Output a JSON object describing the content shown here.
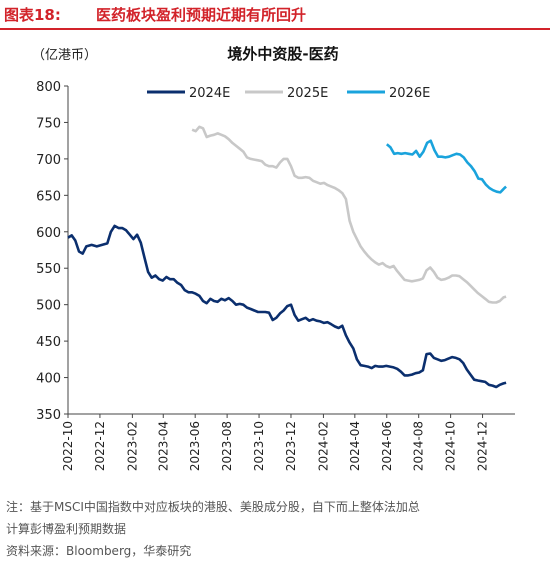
{
  "figure": {
    "label": "图表18:",
    "title": "医药板块盈利预期近期有所回升"
  },
  "notes": {
    "note1": "注：基于MSCI中国指数中对应板块的港股、美股成分股，自下而上整体法加总",
    "note2": "计算彭博盈利预期数据",
    "source": "资料来源：Bloomberg，华泰研究"
  },
  "chart_data": {
    "type": "line",
    "title": "境外中资股-医药",
    "unit_label": "（亿港币）",
    "ylim": [
      350,
      800
    ],
    "y_ticks": [
      350,
      400,
      450,
      500,
      550,
      600,
      650,
      700,
      750,
      800
    ],
    "x_range": [
      "2022-10-01",
      "2025-02-01"
    ],
    "x_ticks": [
      "2022-10",
      "2022-12",
      "2023-02",
      "2023-04",
      "2023-06",
      "2023-08",
      "2023-10",
      "2023-12",
      "2024-02",
      "2024-04",
      "2024-06",
      "2024-08",
      "2024-10",
      "2024-12"
    ],
    "grid": false,
    "legend_position": "top",
    "series": [
      {
        "name": "2024E",
        "color": "#0b2f6e",
        "points": [
          [
            "2022-10-01",
            592
          ],
          [
            "2022-10-08",
            595
          ],
          [
            "2022-10-15",
            588
          ],
          [
            "2022-10-22",
            573
          ],
          [
            "2022-10-29",
            570
          ],
          [
            "2022-11-05",
            580
          ],
          [
            "2022-11-15",
            582
          ],
          [
            "2022-11-25",
            580
          ],
          [
            "2022-12-05",
            582
          ],
          [
            "2022-12-15",
            584
          ],
          [
            "2022-12-22",
            600
          ],
          [
            "2022-12-29",
            608
          ],
          [
            "2023-01-06",
            605
          ],
          [
            "2023-01-13",
            605
          ],
          [
            "2023-01-20",
            602
          ],
          [
            "2023-01-27",
            596
          ],
          [
            "2023-02-03",
            590
          ],
          [
            "2023-02-10",
            596
          ],
          [
            "2023-02-17",
            585
          ],
          [
            "2023-02-24",
            565
          ],
          [
            "2023-03-03",
            545
          ],
          [
            "2023-03-10",
            537
          ],
          [
            "2023-03-17",
            540
          ],
          [
            "2023-03-24",
            535
          ],
          [
            "2023-03-31",
            533
          ],
          [
            "2023-04-07",
            538
          ],
          [
            "2023-04-14",
            535
          ],
          [
            "2023-04-21",
            535
          ],
          [
            "2023-04-28",
            530
          ],
          [
            "2023-05-05",
            527
          ],
          [
            "2023-05-12",
            520
          ],
          [
            "2023-05-19",
            517
          ],
          [
            "2023-05-26",
            517
          ],
          [
            "2023-06-02",
            515
          ],
          [
            "2023-06-09",
            512
          ],
          [
            "2023-06-16",
            505
          ],
          [
            "2023-06-23",
            502
          ],
          [
            "2023-06-30",
            508
          ],
          [
            "2023-07-07",
            505
          ],
          [
            "2023-07-14",
            504
          ],
          [
            "2023-07-21",
            508
          ],
          [
            "2023-07-28",
            506
          ],
          [
            "2023-08-04",
            509
          ],
          [
            "2023-08-11",
            505
          ],
          [
            "2023-08-18",
            500
          ],
          [
            "2023-08-25",
            501
          ],
          [
            "2023-09-01",
            500
          ],
          [
            "2023-09-08",
            496
          ],
          [
            "2023-09-15",
            494
          ],
          [
            "2023-09-22",
            492
          ],
          [
            "2023-09-29",
            490
          ],
          [
            "2023-10-06",
            490
          ],
          [
            "2023-10-13",
            490
          ],
          [
            "2023-10-20",
            489
          ],
          [
            "2023-10-27",
            479
          ],
          [
            "2023-11-03",
            482
          ],
          [
            "2023-11-10",
            488
          ],
          [
            "2023-11-17",
            492
          ],
          [
            "2023-11-24",
            498
          ],
          [
            "2023-12-01",
            500
          ],
          [
            "2023-12-08",
            486
          ],
          [
            "2023-12-15",
            478
          ],
          [
            "2023-12-22",
            480
          ],
          [
            "2023-12-29",
            482
          ],
          [
            "2024-01-05",
            478
          ],
          [
            "2024-01-12",
            480
          ],
          [
            "2024-01-19",
            478
          ],
          [
            "2024-01-26",
            477
          ],
          [
            "2024-02-02",
            475
          ],
          [
            "2024-02-09",
            476
          ],
          [
            "2024-02-16",
            473
          ],
          [
            "2024-02-23",
            470
          ],
          [
            "2024-03-01",
            468
          ],
          [
            "2024-03-08",
            471
          ],
          [
            "2024-03-15",
            458
          ],
          [
            "2024-03-22",
            448
          ],
          [
            "2024-03-29",
            440
          ],
          [
            "2024-04-05",
            425
          ],
          [
            "2024-04-12",
            417
          ],
          [
            "2024-04-19",
            416
          ],
          [
            "2024-04-26",
            415
          ],
          [
            "2024-05-03",
            413
          ],
          [
            "2024-05-10",
            416
          ],
          [
            "2024-05-17",
            415
          ],
          [
            "2024-05-24",
            415
          ],
          [
            "2024-05-31",
            416
          ],
          [
            "2024-06-07",
            415
          ],
          [
            "2024-06-14",
            414
          ],
          [
            "2024-06-21",
            412
          ],
          [
            "2024-06-28",
            408
          ],
          [
            "2024-07-05",
            403
          ],
          [
            "2024-07-12",
            403
          ],
          [
            "2024-07-19",
            404
          ],
          [
            "2024-07-26",
            406
          ],
          [
            "2024-08-02",
            407
          ],
          [
            "2024-08-09",
            410
          ],
          [
            "2024-08-16",
            432
          ],
          [
            "2024-08-23",
            433
          ],
          [
            "2024-08-30",
            427
          ],
          [
            "2024-09-06",
            425
          ],
          [
            "2024-09-13",
            423
          ],
          [
            "2024-09-20",
            424
          ],
          [
            "2024-09-27",
            426
          ],
          [
            "2024-10-04",
            428
          ],
          [
            "2024-10-11",
            427
          ],
          [
            "2024-10-18",
            425
          ],
          [
            "2024-10-25",
            420
          ],
          [
            "2024-11-01",
            411
          ],
          [
            "2024-11-08",
            404
          ],
          [
            "2024-11-15",
            397
          ],
          [
            "2024-11-22",
            396
          ],
          [
            "2024-11-29",
            395
          ],
          [
            "2024-12-06",
            394
          ],
          [
            "2024-12-13",
            390
          ],
          [
            "2024-12-20",
            389
          ],
          [
            "2024-12-27",
            387
          ],
          [
            "2025-01-03",
            390
          ],
          [
            "2025-01-10",
            392
          ],
          [
            "2025-01-15",
            393
          ]
        ]
      },
      {
        "name": "2025E",
        "color": "#c8c8c8",
        "points": [
          [
            "2023-05-26",
            740
          ],
          [
            "2023-06-02",
            738
          ],
          [
            "2023-06-09",
            744
          ],
          [
            "2023-06-16",
            742
          ],
          [
            "2023-06-23",
            730
          ],
          [
            "2023-06-30",
            732
          ],
          [
            "2023-07-07",
            733
          ],
          [
            "2023-07-14",
            735
          ],
          [
            "2023-07-21",
            733
          ],
          [
            "2023-07-28",
            731
          ],
          [
            "2023-08-04",
            727
          ],
          [
            "2023-08-11",
            722
          ],
          [
            "2023-08-18",
            718
          ],
          [
            "2023-08-25",
            714
          ],
          [
            "2023-09-01",
            710
          ],
          [
            "2023-09-08",
            702
          ],
          [
            "2023-09-15",
            700
          ],
          [
            "2023-09-22",
            699
          ],
          [
            "2023-09-29",
            698
          ],
          [
            "2023-10-06",
            697
          ],
          [
            "2023-10-13",
            692
          ],
          [
            "2023-10-20",
            690
          ],
          [
            "2023-10-27",
            690
          ],
          [
            "2023-11-03",
            688
          ],
          [
            "2023-11-10",
            695
          ],
          [
            "2023-11-17",
            700
          ],
          [
            "2023-11-24",
            700
          ],
          [
            "2023-12-01",
            690
          ],
          [
            "2023-12-08",
            677
          ],
          [
            "2023-12-15",
            674
          ],
          [
            "2023-12-22",
            674
          ],
          [
            "2023-12-29",
            675
          ],
          [
            "2024-01-05",
            674
          ],
          [
            "2024-01-12",
            670
          ],
          [
            "2024-01-19",
            668
          ],
          [
            "2024-01-26",
            666
          ],
          [
            "2024-02-02",
            667
          ],
          [
            "2024-02-09",
            664
          ],
          [
            "2024-02-16",
            662
          ],
          [
            "2024-02-23",
            660
          ],
          [
            "2024-03-01",
            657
          ],
          [
            "2024-03-08",
            653
          ],
          [
            "2024-03-15",
            645
          ],
          [
            "2024-03-22",
            615
          ],
          [
            "2024-03-29",
            600
          ],
          [
            "2024-04-05",
            590
          ],
          [
            "2024-04-12",
            580
          ],
          [
            "2024-04-19",
            573
          ],
          [
            "2024-04-26",
            567
          ],
          [
            "2024-05-03",
            562
          ],
          [
            "2024-05-10",
            558
          ],
          [
            "2024-05-17",
            555
          ],
          [
            "2024-05-24",
            557
          ],
          [
            "2024-05-31",
            553
          ],
          [
            "2024-06-07",
            551
          ],
          [
            "2024-06-14",
            553
          ],
          [
            "2024-06-21",
            546
          ],
          [
            "2024-06-28",
            540
          ],
          [
            "2024-07-05",
            534
          ],
          [
            "2024-07-12",
            533
          ],
          [
            "2024-07-19",
            532
          ],
          [
            "2024-07-26",
            533
          ],
          [
            "2024-08-02",
            534
          ],
          [
            "2024-08-09",
            536
          ],
          [
            "2024-08-16",
            547
          ],
          [
            "2024-08-23",
            551
          ],
          [
            "2024-08-30",
            545
          ],
          [
            "2024-09-06",
            537
          ],
          [
            "2024-09-13",
            534
          ],
          [
            "2024-09-20",
            535
          ],
          [
            "2024-09-27",
            537
          ],
          [
            "2024-10-04",
            540
          ],
          [
            "2024-10-11",
            540
          ],
          [
            "2024-10-18",
            539
          ],
          [
            "2024-10-25",
            535
          ],
          [
            "2024-11-01",
            531
          ],
          [
            "2024-11-08",
            526
          ],
          [
            "2024-11-15",
            521
          ],
          [
            "2024-11-22",
            516
          ],
          [
            "2024-11-29",
            512
          ],
          [
            "2024-12-06",
            508
          ],
          [
            "2024-12-13",
            504
          ],
          [
            "2024-12-20",
            503
          ],
          [
            "2024-12-27",
            503
          ],
          [
            "2025-01-03",
            505
          ],
          [
            "2025-01-10",
            510
          ],
          [
            "2025-01-15",
            511
          ]
        ]
      },
      {
        "name": "2026E",
        "color": "#1aa3dc",
        "points": [
          [
            "2024-06-01",
            720
          ],
          [
            "2024-06-08",
            716
          ],
          [
            "2024-06-15",
            707
          ],
          [
            "2024-06-22",
            708
          ],
          [
            "2024-06-29",
            707
          ],
          [
            "2024-07-06",
            708
          ],
          [
            "2024-07-13",
            707
          ],
          [
            "2024-07-20",
            706
          ],
          [
            "2024-07-27",
            711
          ],
          [
            "2024-08-03",
            703
          ],
          [
            "2024-08-10",
            710
          ],
          [
            "2024-08-17",
            722
          ],
          [
            "2024-08-24",
            725
          ],
          [
            "2024-08-31",
            712
          ],
          [
            "2024-09-07",
            703
          ],
          [
            "2024-09-14",
            703
          ],
          [
            "2024-09-21",
            702
          ],
          [
            "2024-09-28",
            703
          ],
          [
            "2024-10-05",
            705
          ],
          [
            "2024-10-12",
            707
          ],
          [
            "2024-10-19",
            706
          ],
          [
            "2024-10-26",
            702
          ],
          [
            "2024-11-02",
            695
          ],
          [
            "2024-11-09",
            690
          ],
          [
            "2024-11-16",
            683
          ],
          [
            "2024-11-23",
            673
          ],
          [
            "2024-11-30",
            672
          ],
          [
            "2024-12-07",
            665
          ],
          [
            "2024-12-14",
            660
          ],
          [
            "2024-12-21",
            657
          ],
          [
            "2024-12-28",
            655
          ],
          [
            "2025-01-04",
            654
          ],
          [
            "2025-01-08",
            657
          ],
          [
            "2025-01-12",
            660
          ],
          [
            "2025-01-15",
            662
          ]
        ]
      }
    ]
  }
}
